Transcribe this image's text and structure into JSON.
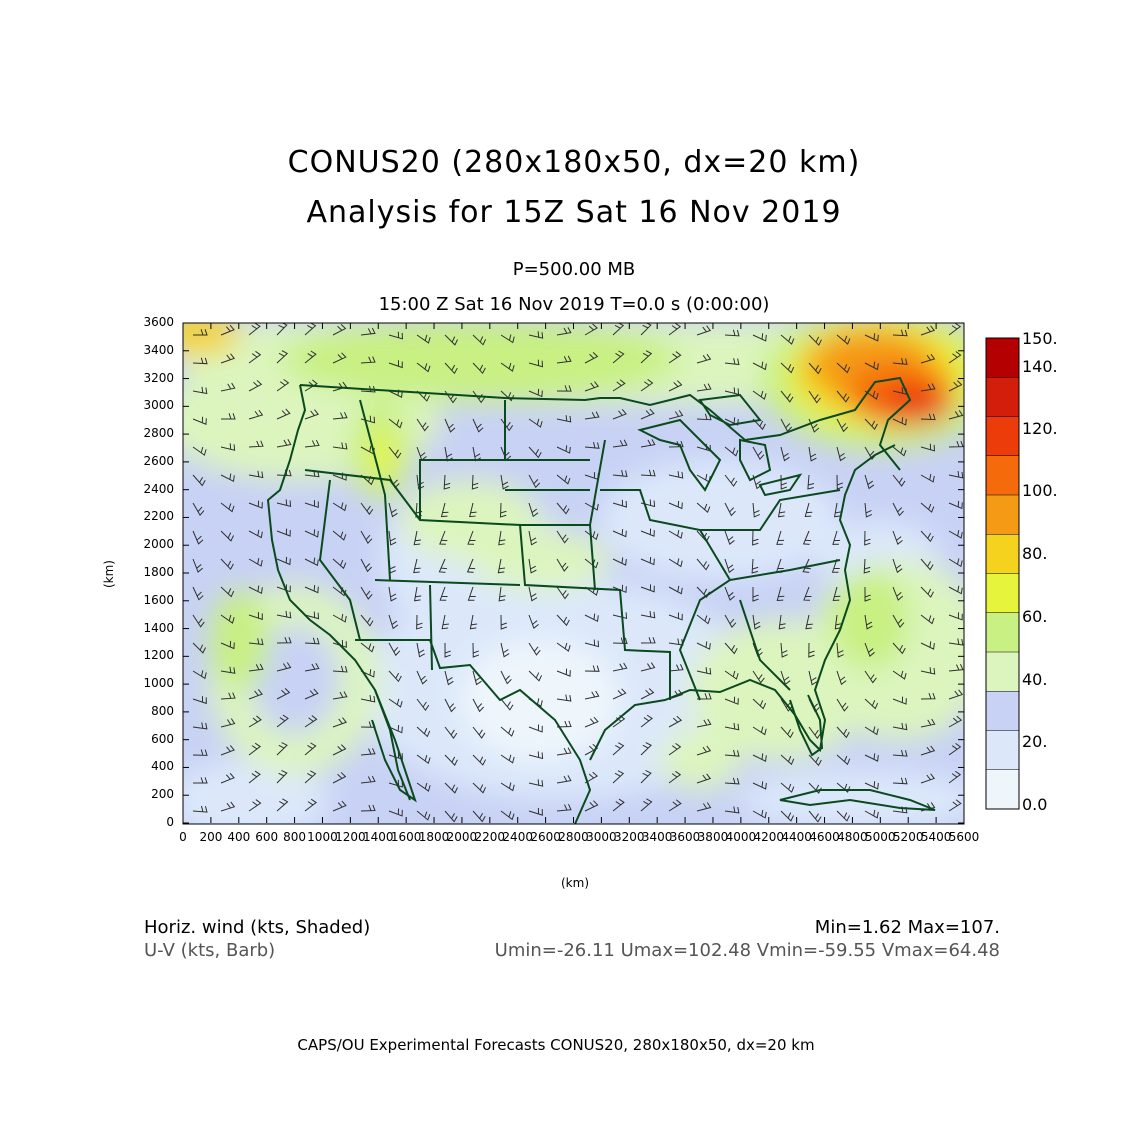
{
  "header": {
    "title_line1": "CONUS20 (280x180x50, dx=20 km)",
    "title_line2": "Analysis for 15Z Sat 16 Nov 2019",
    "level": "P=500.00 MB",
    "time": "15:00 Z Sat 16 Nov 2019    T=0.0 s (0:00:00)"
  },
  "axes": {
    "x_unit": "(km)",
    "y_unit": "(km)",
    "x_ticks": [
      "0",
      "200",
      "400",
      "600",
      "800",
      "1000",
      "1200",
      "1400",
      "1600",
      "1800",
      "2000",
      "2200",
      "2400",
      "2600",
      "2800",
      "3000",
      "3200",
      "3400",
      "3600",
      "3800",
      "4000",
      "4200",
      "4400",
      "4600",
      "4800",
      "5000",
      "5200",
      "5400",
      "5600"
    ],
    "y_ticks": [
      "0",
      "200",
      "400",
      "600",
      "800",
      "1000",
      "1200",
      "1400",
      "1600",
      "1800",
      "2000",
      "2200",
      "2400",
      "2600",
      "2800",
      "3000",
      "3200",
      "3400",
      "3600"
    ]
  },
  "colorbar": {
    "labels": [
      "150.",
      "140.",
      "120.",
      "100.",
      "80.",
      "60.",
      "40.",
      "20.",
      "0.0"
    ],
    "colors": [
      "#b40000",
      "#d21e0a",
      "#eb3c0a",
      "#f56a0a",
      "#f59a14",
      "#f5d21e",
      "#e6f53c",
      "#c8f082",
      "#dcf5be",
      "#c8d2f5",
      "#dce8fa",
      "#eef6fc"
    ]
  },
  "footer": {
    "left1": "Horiz. wind (kts, Shaded)",
    "left2": "U-V (kts, Barb)",
    "right1": "Min=1.62 Max=107.",
    "right2": "Umin=-26.11 Umax=102.48 Vmin=-59.55 Vmax=64.48",
    "credit": "CAPS/OU Experimental Forecasts  CONUS20, 280x180x50, dx=20 km"
  },
  "colors": {
    "map_outline": "#0a4a1e",
    "barb": "#303030"
  }
}
